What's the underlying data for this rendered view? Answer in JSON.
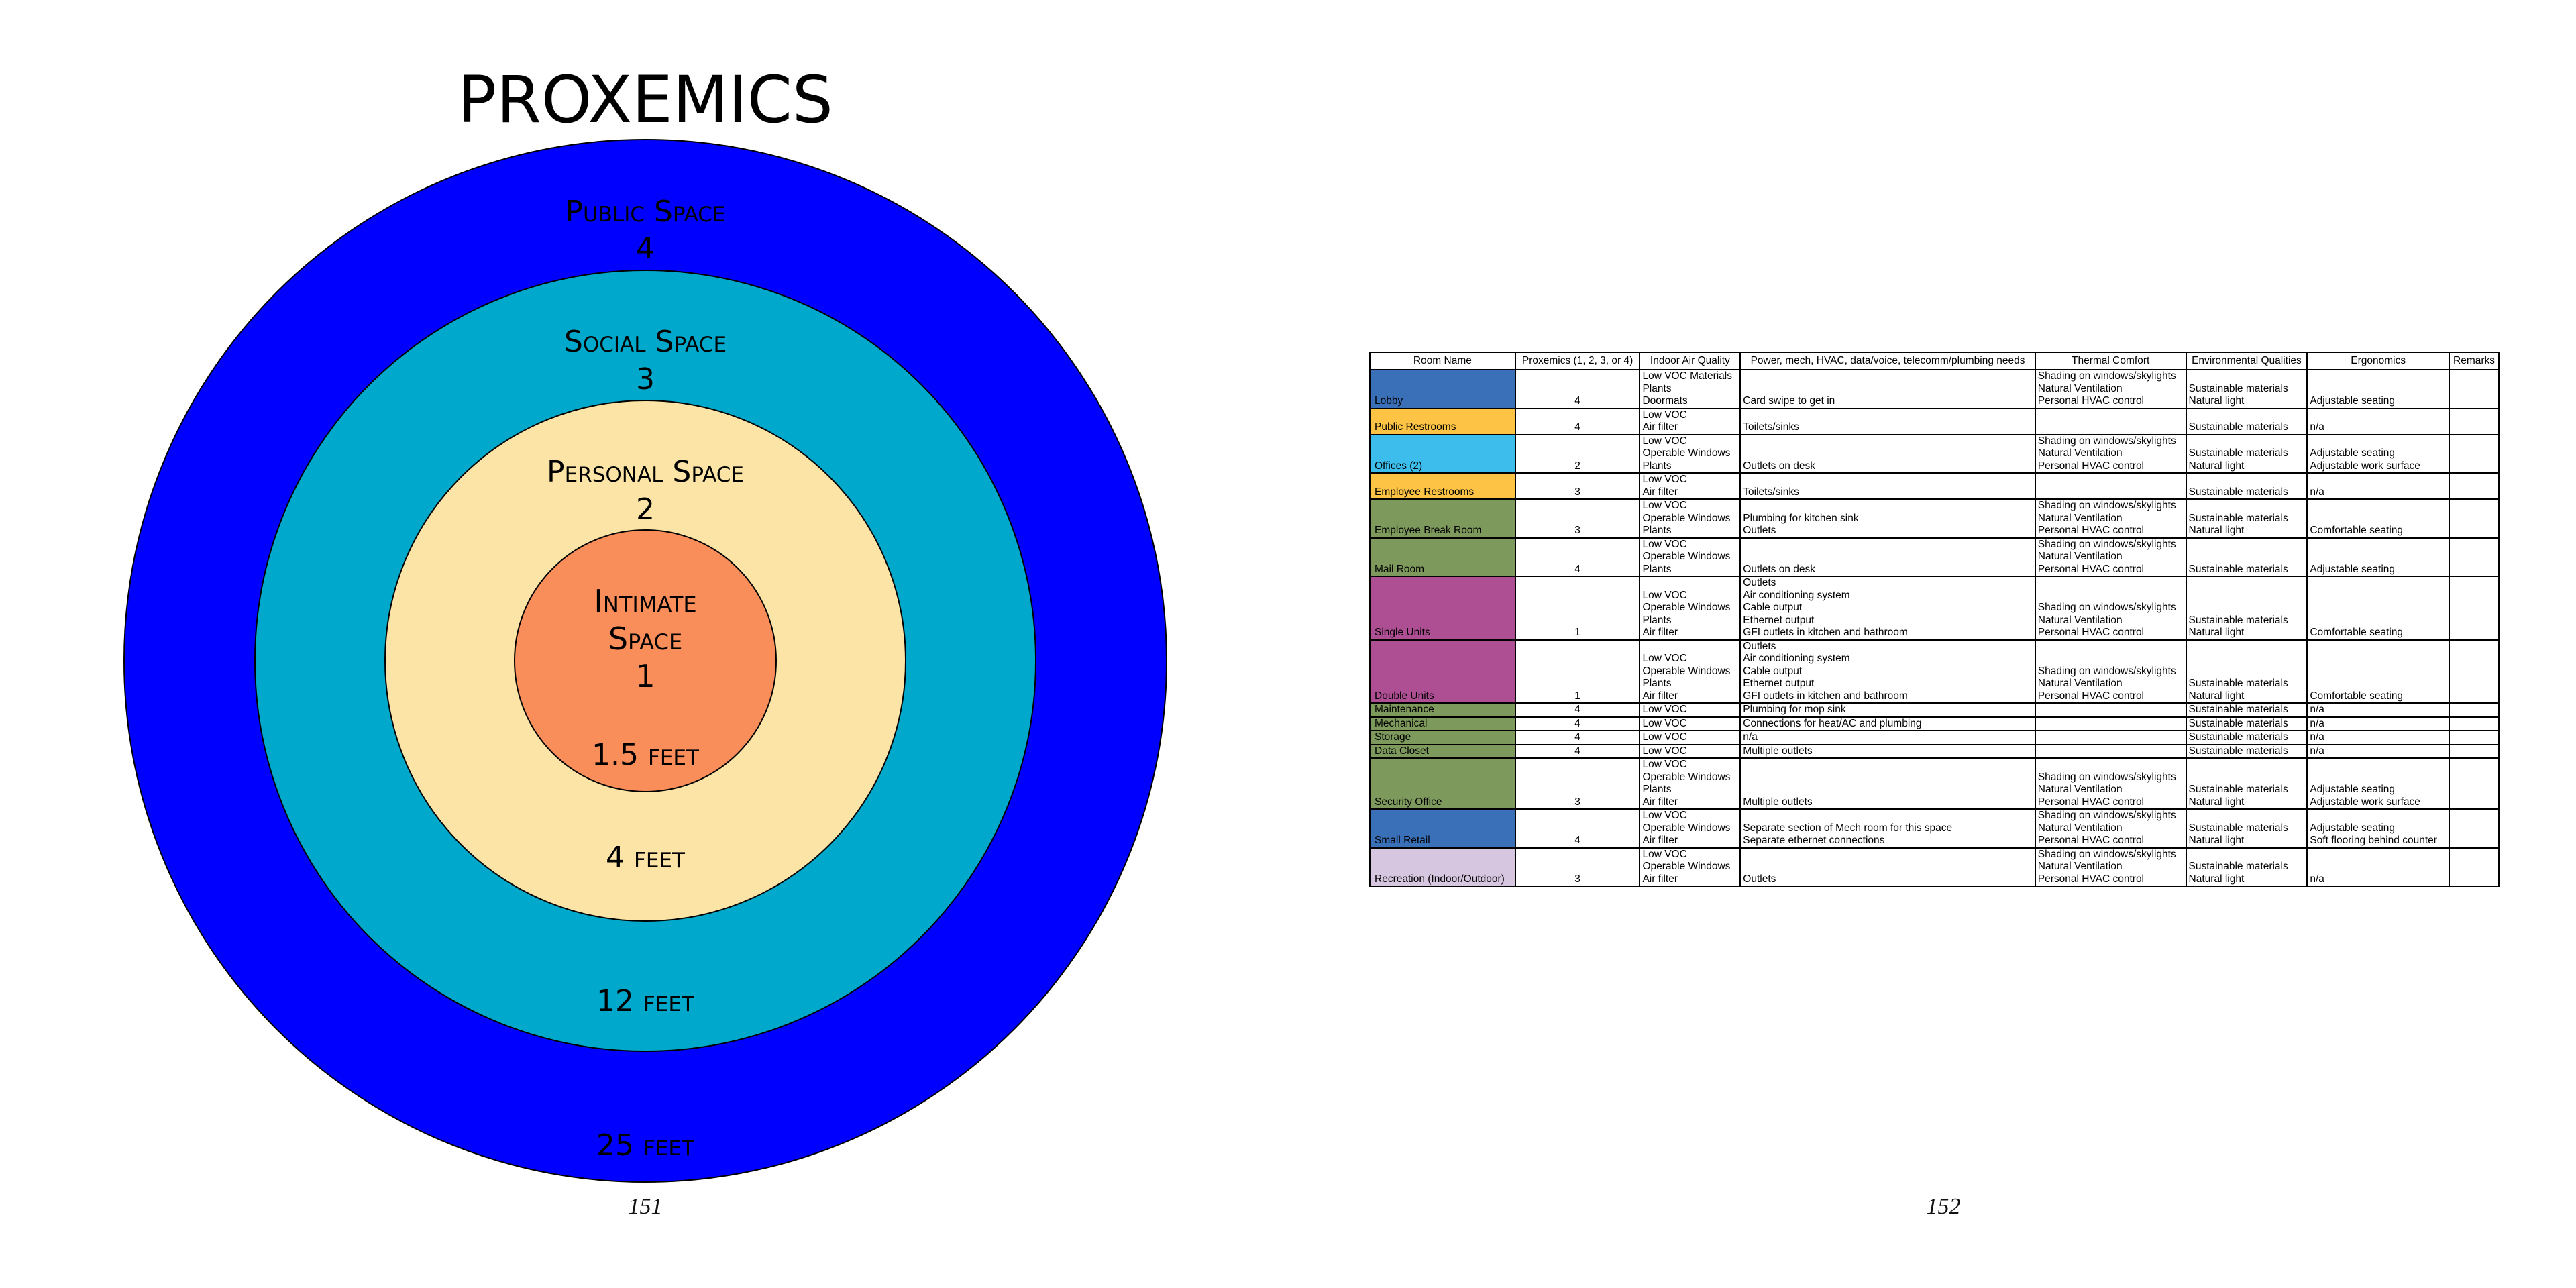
{
  "left_page": {
    "title": "PROXEMICS",
    "page_number": "151",
    "zones": [
      {
        "label": "Public Space",
        "number": "4",
        "distance": "25 feet",
        "color": "#0000FF"
      },
      {
        "label": "Social Space",
        "number": "3",
        "distance": "12 feet",
        "color": "#00A9CC"
      },
      {
        "label": "Personal Space",
        "number": "2",
        "distance": "4 feet",
        "color": "#FCE4A6"
      },
      {
        "label": "Intimate Space",
        "label_lines": [
          "Intimate",
          "Space"
        ],
        "number": "1",
        "distance": "1.5 feet",
        "color": "#F98E5B"
      }
    ]
  },
  "right_page": {
    "page_number": "152",
    "table": {
      "headers": [
        "Room Name",
        "Proxemics (1, 2, 3, or 4)",
        "Indoor Air Quality",
        "Power, mech, HVAC, data/voice, telecomm/plumbing needs",
        "Thermal Comfort",
        "Environmental Qualities",
        "Ergonomics",
        "Remarks"
      ],
      "rows": [
        {
          "name": "Lobby",
          "color": "#3A70B8",
          "prox": "4",
          "air": [
            "Low VOC Materials",
            "Plants",
            "Doormats"
          ],
          "power": [
            "Card swipe to get in"
          ],
          "thermal": [
            "Shading on windows/skylights",
            "Natural Ventilation",
            "Personal HVAC control"
          ],
          "env": [
            "Sustainable materials",
            "Natural light"
          ],
          "ergo": [
            "Adjustable seating"
          ],
          "remarks": []
        },
        {
          "name": "Public Restrooms",
          "color": "#FCC344",
          "prox": "4",
          "air": [
            "Low VOC",
            "Air filter"
          ],
          "power": [
            "Toilets/sinks"
          ],
          "thermal": [],
          "env": [
            "Sustainable materials"
          ],
          "ergo": [
            "n/a"
          ],
          "remarks": []
        },
        {
          "name": "Offices (2)",
          "color": "#3DBDEB",
          "prox": "2",
          "air": [
            "Low VOC",
            "Operable Windows",
            "Plants"
          ],
          "power": [
            "Outlets on desk"
          ],
          "thermal": [
            "Shading on windows/skylights",
            "Natural Ventilation",
            "Personal HVAC control"
          ],
          "env": [
            "Sustainable materials",
            "Natural light"
          ],
          "ergo": [
            "Adjustable seating",
            "Adjustable work surface"
          ],
          "remarks": []
        },
        {
          "name": "Employee Restrooms",
          "color": "#FCC344",
          "prox": "3",
          "air": [
            "Low VOC",
            "Air filter"
          ],
          "power": [
            "Toilets/sinks"
          ],
          "thermal": [],
          "env": [
            "Sustainable materials"
          ],
          "ergo": [
            "n/a"
          ],
          "remarks": []
        },
        {
          "name": "Employee Break Room",
          "color": "#7E995C",
          "prox": "3",
          "air": [
            "Low VOC",
            "Operable Windows",
            "Plants"
          ],
          "power": [
            "Plumbing for kitchen sink",
            "Outlets"
          ],
          "thermal": [
            "Shading on windows/skylights",
            "Natural Ventilation",
            "Personal HVAC control"
          ],
          "env": [
            "Sustainable materials",
            "Natural light"
          ],
          "ergo": [
            "Comfortable seating"
          ],
          "remarks": []
        },
        {
          "name": "Mail Room",
          "color": "#7E995C",
          "prox": "4",
          "air": [
            "Low VOC",
            "Operable Windows",
            "Plants"
          ],
          "power": [
            "Outlets on desk"
          ],
          "thermal": [
            "Shading on windows/skylights",
            "Natural Ventilation",
            "Personal HVAC control"
          ],
          "env": [
            "Sustainable materials"
          ],
          "ergo": [
            "Adjustable seating"
          ],
          "remarks": []
        },
        {
          "name": "Single Units",
          "color": "#AE4F93",
          "prox": "1",
          "air": [
            "Low VOC",
            "Operable Windows",
            "Plants",
            "Air filter"
          ],
          "power": [
            "Outlets",
            "Air conditioning system",
            "Cable output",
            "Ethernet output",
            "GFI outlets in kitchen and bathroom"
          ],
          "thermal": [
            "Shading on windows/skylights",
            "Natural Ventilation",
            "Personal HVAC control"
          ],
          "env": [
            "Sustainable materials",
            "Natural light"
          ],
          "ergo": [
            "Comfortable seating"
          ],
          "remarks": []
        },
        {
          "name": "Double Units",
          "color": "#AE4F93",
          "prox": "1",
          "air": [
            "Low VOC",
            "Operable Windows",
            "Plants",
            "Air filter"
          ],
          "power": [
            "Outlets",
            "Air conditioning system",
            "Cable output",
            "Ethernet output",
            "GFI outlets in kitchen and bathroom"
          ],
          "thermal": [
            "Shading on windows/skylights",
            "Natural Ventilation",
            "Personal HVAC control"
          ],
          "env": [
            "Sustainable materials",
            "Natural light"
          ],
          "ergo": [
            "Comfortable seating"
          ],
          "remarks": []
        },
        {
          "name": "Maintenance",
          "color": "#7E995C",
          "prox": "4",
          "air": [
            "Low VOC"
          ],
          "power": [
            "Plumbing for mop sink"
          ],
          "thermal": [],
          "env": [
            "Sustainable materials"
          ],
          "ergo": [
            "n/a"
          ],
          "remarks": []
        },
        {
          "name": "Mechanical",
          "color": "#7E995C",
          "prox": "4",
          "air": [
            "Low VOC"
          ],
          "power": [
            "Connections for heat/AC and plumbing"
          ],
          "thermal": [],
          "env": [
            "Sustainable materials"
          ],
          "ergo": [
            "n/a"
          ],
          "remarks": []
        },
        {
          "name": "Storage",
          "color": "#7E995C",
          "prox": "4",
          "air": [
            "Low VOC"
          ],
          "power": [
            "n/a"
          ],
          "thermal": [],
          "env": [
            "Sustainable materials"
          ],
          "ergo": [
            "n/a"
          ],
          "remarks": []
        },
        {
          "name": "Data Closet",
          "color": "#7E995C",
          "prox": "4",
          "air": [
            "Low VOC"
          ],
          "power": [
            "Multiple outlets"
          ],
          "thermal": [],
          "env": [
            "Sustainable materials"
          ],
          "ergo": [
            "n/a"
          ],
          "remarks": []
        },
        {
          "name": "Security Office",
          "color": "#7E995C",
          "prox": "3",
          "air": [
            "Low VOC",
            "Operable Windows",
            "Plants",
            "Air filter"
          ],
          "power": [
            "Multiple outlets"
          ],
          "thermal": [
            "Shading on windows/skylights",
            "Natural Ventilation",
            "Personal HVAC control"
          ],
          "env": [
            "Sustainable materials",
            "Natural light"
          ],
          "ergo": [
            "Adjustable seating",
            "Adjustable work surface"
          ],
          "remarks": []
        },
        {
          "name": "Small Retail",
          "color": "#3A70B8",
          "prox": "4",
          "air": [
            "Low VOC",
            "Operable Windows",
            "Air filter"
          ],
          "power": [
            "Separate section of Mech room for this space",
            "Separate ethernet connections"
          ],
          "thermal": [
            "Shading on windows/skylights",
            "Natural Ventilation",
            "Personal HVAC control"
          ],
          "env": [
            "Sustainable materials",
            "Natural light"
          ],
          "ergo": [
            "Adjustable seating",
            "Soft flooring behind counter"
          ],
          "remarks": []
        },
        {
          "name": "Recreation (Indoor/Outdoor)",
          "color": "#D6C6E0",
          "prox": "3",
          "air": [
            "Low VOC",
            "Operable Windows",
            "Air filter"
          ],
          "power": [
            "Outlets"
          ],
          "thermal": [
            "Shading on windows/skylights",
            "Natural Ventilation",
            "Personal HVAC control"
          ],
          "env": [
            "Sustainable materials",
            "Natural light"
          ],
          "ergo": [
            "n/a"
          ],
          "remarks": []
        }
      ]
    }
  }
}
